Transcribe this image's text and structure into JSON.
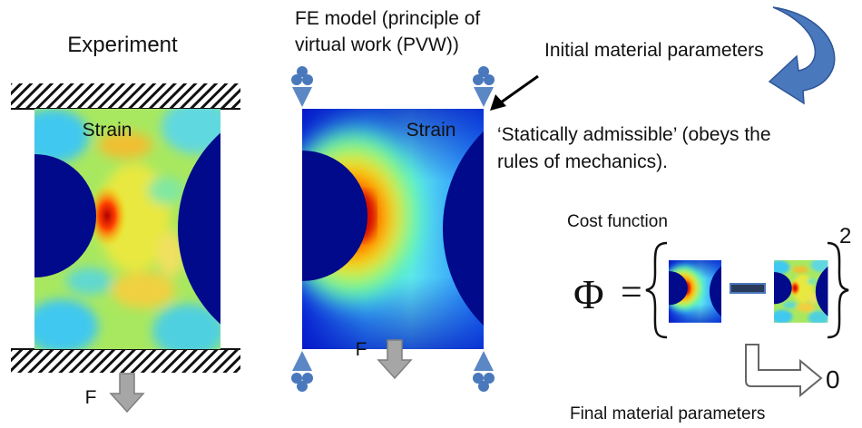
{
  "experiment": {
    "title": "Experiment",
    "field_label": "Strain",
    "force_label": "F"
  },
  "fe_model": {
    "title_lines": [
      "FE model (principle of",
      "virtual work (PVW))"
    ],
    "field_label": "Strain",
    "force_label": "F"
  },
  "annotations": {
    "initial": "Initial material parameters",
    "admissible_lines": [
      "‘Statically admissible’ (obeys the",
      "rules of mechanics)."
    ]
  },
  "cost": {
    "title": "Cost function",
    "symbol": "Φ",
    "equals": "=",
    "exponent": "2",
    "target": "0",
    "final": "Final material parameters"
  }
}
